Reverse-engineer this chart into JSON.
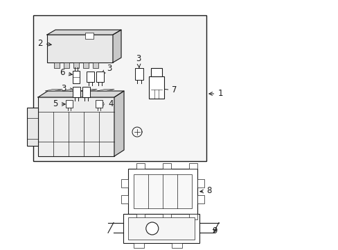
{
  "bg_color": "#ffffff",
  "line_color": "#1a1a1a",
  "fig_width": 4.89,
  "fig_height": 3.6,
  "dpi": 100,
  "box_bg": "#f5f5f5",
  "part_fc": "#ffffff",
  "part_ec": "#1a1a1a",
  "shadow_fc": "#e0e0e0"
}
